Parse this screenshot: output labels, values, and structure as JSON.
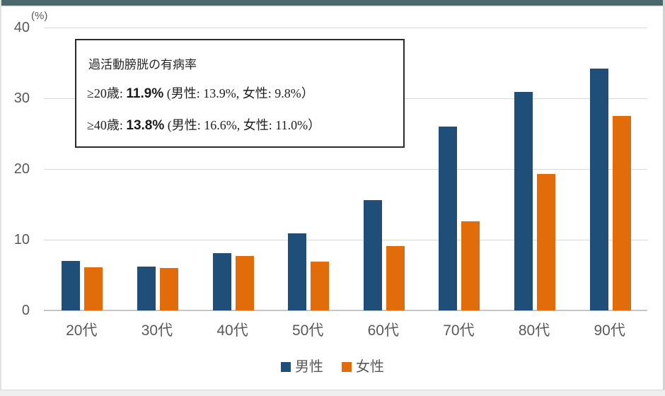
{
  "page": {
    "top_bar_color": "#4a686c"
  },
  "chart_data": {
    "type": "bar",
    "title": "",
    "unit_label": "(%)",
    "categories": [
      "20代",
      "30代",
      "40代",
      "50代",
      "60代",
      "70代",
      "80代",
      "90代"
    ],
    "series": [
      {
        "name": "男性",
        "color": "#1f4e79",
        "values": [
          7.0,
          6.2,
          8.1,
          10.9,
          15.6,
          26.0,
          30.9,
          34.2
        ]
      },
      {
        "name": "女性",
        "color": "#e36c0a",
        "values": [
          6.1,
          6.0,
          7.7,
          6.9,
          9.1,
          12.6,
          19.3,
          27.5
        ]
      }
    ],
    "ylim": [
      0,
      40
    ],
    "yticks": [
      0,
      10,
      20,
      30,
      40
    ],
    "grid": true,
    "legend_position": "bottom"
  },
  "annotation": {
    "title": "過活動膀胱の有病率",
    "lines": [
      {
        "prefix": "≥20歳: ",
        "value": "11.9%",
        "detail": " (男性: 13.9%, 女性: 9.8%）"
      },
      {
        "prefix": "≥40歳: ",
        "value": "13.8%",
        "detail": " (男性: 16.6%, 女性: 11.0%）"
      }
    ]
  }
}
